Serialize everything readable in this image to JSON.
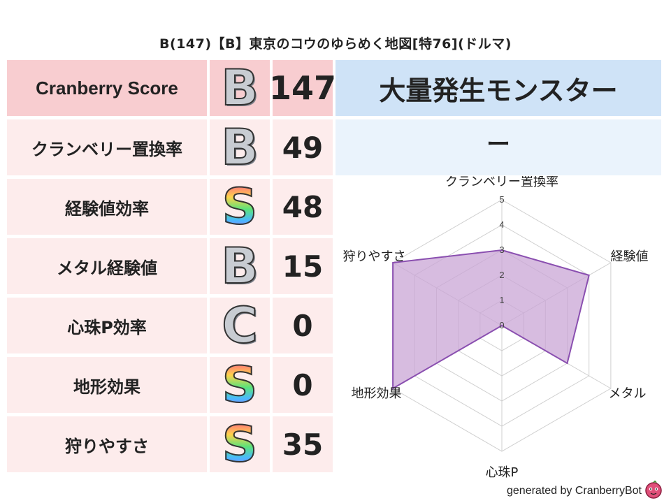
{
  "title": "B(147)【B】東京のコウのゆらめく地図[特76](ドルマ)",
  "rows": [
    {
      "label": "Cranberry Score",
      "grade": "B",
      "value": "147"
    },
    {
      "label": "クランベリー置換率",
      "grade": "B",
      "value": "49"
    },
    {
      "label": "経験値効率",
      "grade": "S",
      "value": "48"
    },
    {
      "label": "メタル経験値",
      "grade": "B",
      "value": "15"
    },
    {
      "label": "心珠P効率",
      "grade": "C",
      "value": "0"
    },
    {
      "label": "地形効果",
      "grade": "S",
      "value": "0"
    },
    {
      "label": "狩りやすさ",
      "grade": "S",
      "value": "35"
    }
  ],
  "monster": {
    "header": "大量発生モンスター",
    "name": "ー"
  },
  "chart_data": {
    "type": "radar",
    "axes": [
      "クランベリー置換率",
      "経験値",
      "メタル",
      "心珠P",
      "地形効果",
      "狩りやすさ"
    ],
    "values": [
      3,
      4,
      3,
      0,
      5,
      5
    ],
    "rlim": [
      0,
      5
    ],
    "ticks": [
      "0",
      "1",
      "2",
      "3",
      "4",
      "5"
    ],
    "fill_color": "#c9a6d6",
    "line_color": "#8a4fb0",
    "grid": true
  },
  "footer": {
    "text": "generated by CranberryBot",
    "icon": "cranberry-bot-icon"
  }
}
